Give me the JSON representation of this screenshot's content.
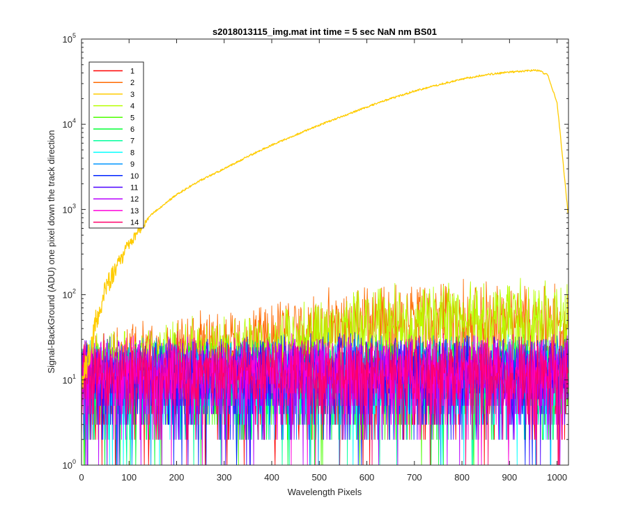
{
  "chart_data": {
    "type": "line",
    "title": "s2018013115_img.mat int time = 5 sec  NaN nm BS01",
    "xlabel": "Wavelength Pixels",
    "ylabel": "Signal-BackGround (ADU) one pixel down the track direction",
    "xlim": [
      0,
      1024
    ],
    "ylim": [
      1,
      100000
    ],
    "yscale": "log",
    "grid": false,
    "legend_position": "top-left",
    "xticks": [
      "0",
      "100",
      "200",
      "300",
      "400",
      "500",
      "600",
      "700",
      "800",
      "900",
      "1000"
    ],
    "yticks": [
      {
        "base": "10",
        "exp": "0"
      },
      {
        "base": "10",
        "exp": "1"
      },
      {
        "base": "10",
        "exp": "2"
      },
      {
        "base": "10",
        "exp": "3"
      },
      {
        "base": "10",
        "exp": "4"
      },
      {
        "base": "10",
        "exp": "5"
      }
    ],
    "series": [
      {
        "name": "1",
        "color": "#ff0000",
        "kind": "noise",
        "profile": [
          [
            0,
            8
          ],
          [
            500,
            9
          ],
          [
            1024,
            9
          ]
        ]
      },
      {
        "name": "2",
        "color": "#ff6a00",
        "kind": "noise",
        "profile": [
          [
            0,
            12
          ],
          [
            300,
            22
          ],
          [
            500,
            38
          ],
          [
            800,
            50
          ],
          [
            1024,
            45
          ]
        ]
      },
      {
        "name": "3",
        "color": "#ffcc00",
        "kind": "signal",
        "x": [
          0,
          20,
          30,
          50,
          100,
          150,
          200,
          250,
          300,
          350,
          400,
          450,
          500,
          550,
          600,
          650,
          700,
          750,
          800,
          850,
          900,
          940,
          960,
          980,
          1000,
          1010,
          1024
        ],
        "y": [
          10,
          25,
          50,
          120,
          400,
          900,
          1500,
          2200,
          3000,
          4200,
          5700,
          7500,
          9800,
          12500,
          16000,
          20000,
          24500,
          29000,
          34000,
          38000,
          41000,
          42500,
          43000,
          38000,
          18000,
          5000,
          800
        ]
      },
      {
        "name": "4",
        "color": "#b7ff00",
        "kind": "noise",
        "profile": [
          [
            0,
            12
          ],
          [
            300,
            20
          ],
          [
            500,
            32
          ],
          [
            800,
            52
          ],
          [
            1024,
            50
          ]
        ]
      },
      {
        "name": "5",
        "color": "#4cff00",
        "kind": "noise",
        "profile": [
          [
            0,
            10
          ],
          [
            500,
            12
          ],
          [
            1024,
            12
          ]
        ]
      },
      {
        "name": "6",
        "color": "#00ff33",
        "kind": "noise",
        "profile": [
          [
            0,
            9
          ],
          [
            500,
            10
          ],
          [
            1024,
            10
          ]
        ]
      },
      {
        "name": "7",
        "color": "#00ff9e",
        "kind": "noise",
        "profile": [
          [
            0,
            8
          ],
          [
            500,
            9
          ],
          [
            1024,
            9
          ]
        ]
      },
      {
        "name": "8",
        "color": "#00ffff",
        "kind": "noise",
        "profile": [
          [
            0,
            9
          ],
          [
            500,
            10
          ],
          [
            1024,
            10
          ]
        ]
      },
      {
        "name": "9",
        "color": "#0096ff",
        "kind": "noise",
        "profile": [
          [
            0,
            10
          ],
          [
            500,
            11
          ],
          [
            1024,
            11
          ]
        ]
      },
      {
        "name": "10",
        "color": "#0024ff",
        "kind": "noise",
        "profile": [
          [
            0,
            10
          ],
          [
            500,
            11
          ],
          [
            1024,
            11
          ]
        ]
      },
      {
        "name": "11",
        "color": "#4c00ff",
        "kind": "noise",
        "profile": [
          [
            0,
            10
          ],
          [
            500,
            11
          ],
          [
            1024,
            11
          ]
        ]
      },
      {
        "name": "12",
        "color": "#b700ff",
        "kind": "noise",
        "profile": [
          [
            0,
            11
          ],
          [
            500,
            11
          ],
          [
            1024,
            11
          ]
        ]
      },
      {
        "name": "13",
        "color": "#ff00d9",
        "kind": "noise",
        "profile": [
          [
            0,
            11
          ],
          [
            500,
            11
          ],
          [
            1024,
            11
          ]
        ]
      },
      {
        "name": "14",
        "color": "#ff006a",
        "kind": "noise",
        "profile": [
          [
            0,
            11
          ],
          [
            500,
            11
          ],
          [
            1024,
            11
          ]
        ]
      }
    ]
  }
}
